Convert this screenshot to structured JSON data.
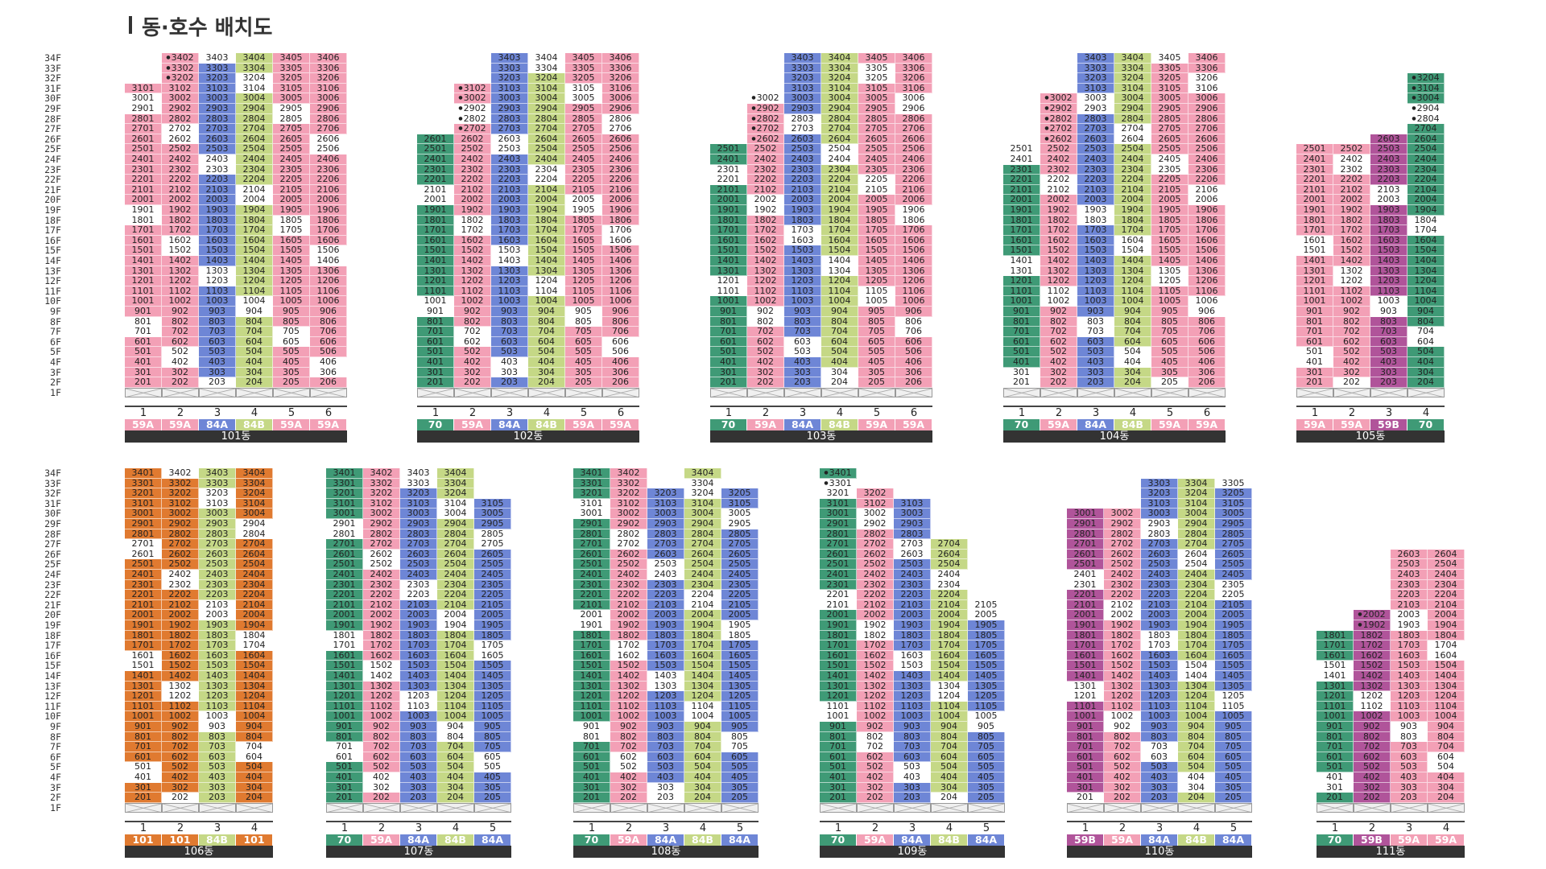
{
  "page_title": "동·호수 배치도",
  "colors": {
    "pink": "#f3a0b6",
    "blue": "#6e86d6",
    "green": "#c5d886",
    "teal": "#3f9a76",
    "orange": "#e07a30",
    "purple": "#b0549a",
    "white": "#ffffff",
    "cream": "#fff6dd"
  },
  "floors": [
    "34F",
    "33F",
    "32F",
    "31F",
    "30F",
    "29F",
    "28F",
    "27F",
    "26F",
    "25F",
    "24F",
    "23F",
    "22F",
    "21F",
    "20F",
    "19F",
    "18F",
    "17F",
    "16F",
    "15F",
    "14F",
    "13F",
    "12F",
    "11F",
    "10F",
    "9F",
    "8F",
    "7F",
    "6F",
    "5F",
    "4F",
    "3F",
    "2F",
    "1F"
  ],
  "buildings_top": [
    {
      "name": "101동",
      "lines": [
        "1",
        "2",
        "3",
        "4",
        "5",
        "6"
      ],
      "types": [
        "59A",
        "59A",
        "84A",
        "84B",
        "59A",
        "59A"
      ]
    },
    {
      "name": "102동",
      "lines": [
        "1",
        "2",
        "3",
        "4",
        "5",
        "6"
      ],
      "types": [
        "70",
        "59A",
        "84A",
        "84B",
        "59A",
        "59A"
      ]
    },
    {
      "name": "103동",
      "lines": [
        "1",
        "2",
        "3",
        "4",
        "5",
        "6"
      ],
      "types": [
        "70",
        "59A",
        "84A",
        "84B",
        "59A",
        "59A"
      ]
    },
    {
      "name": "104동",
      "lines": [
        "1",
        "2",
        "3",
        "4",
        "5",
        "6"
      ],
      "types": [
        "70",
        "59A",
        "84A",
        "84B",
        "59A",
        "59A"
      ]
    },
    {
      "name": "105동",
      "lines": [
        "1",
        "2",
        "3",
        "4"
      ],
      "types": [
        "59A",
        "59A",
        "59B",
        "70"
      ]
    }
  ],
  "buildings_bottom": [
    {
      "name": "106동",
      "lines": [
        "1",
        "2",
        "3",
        "4"
      ],
      "types": [
        "101",
        "101",
        "84B",
        "101"
      ]
    },
    {
      "name": "107동",
      "lines": [
        "1",
        "2",
        "3",
        "4",
        "5"
      ],
      "types": [
        "70",
        "59A",
        "84A",
        "84B",
        "84A"
      ]
    },
    {
      "name": "108동",
      "lines": [
        "1",
        "2",
        "3",
        "4",
        "5"
      ],
      "types": [
        "70",
        "59A",
        "84A",
        "84B",
        "84A"
      ]
    },
    {
      "name": "109동",
      "lines": [
        "1",
        "2",
        "3",
        "4",
        "5"
      ],
      "types": [
        "70",
        "59A",
        "84A",
        "84B",
        "84A"
      ]
    },
    {
      "name": "110동",
      "lines": [
        "1",
        "2",
        "3",
        "4",
        "5"
      ],
      "types": [
        "59B",
        "59A",
        "84A",
        "84B",
        "84A"
      ]
    },
    {
      "name": "111동",
      "lines": [
        "1",
        "2",
        "3",
        "4"
      ],
      "types": [
        "70",
        "59B",
        "59A",
        "59A"
      ]
    }
  ]
}
